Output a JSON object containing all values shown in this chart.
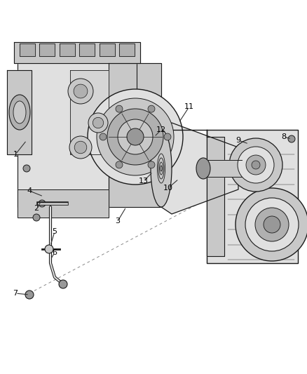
{
  "bg_color": "#ffffff",
  "fig_width": 4.38,
  "fig_height": 5.33,
  "dpi": 100,
  "edge_color": "#1a1a1a",
  "fill_light": "#e0e0e0",
  "fill_mid": "#c8c8c8",
  "fill_dark": "#b0b0b0",
  "fill_darker": "#989898",
  "text_color": "#000000",
  "leader_color": "#333333",
  "dash_color": "#888888"
}
